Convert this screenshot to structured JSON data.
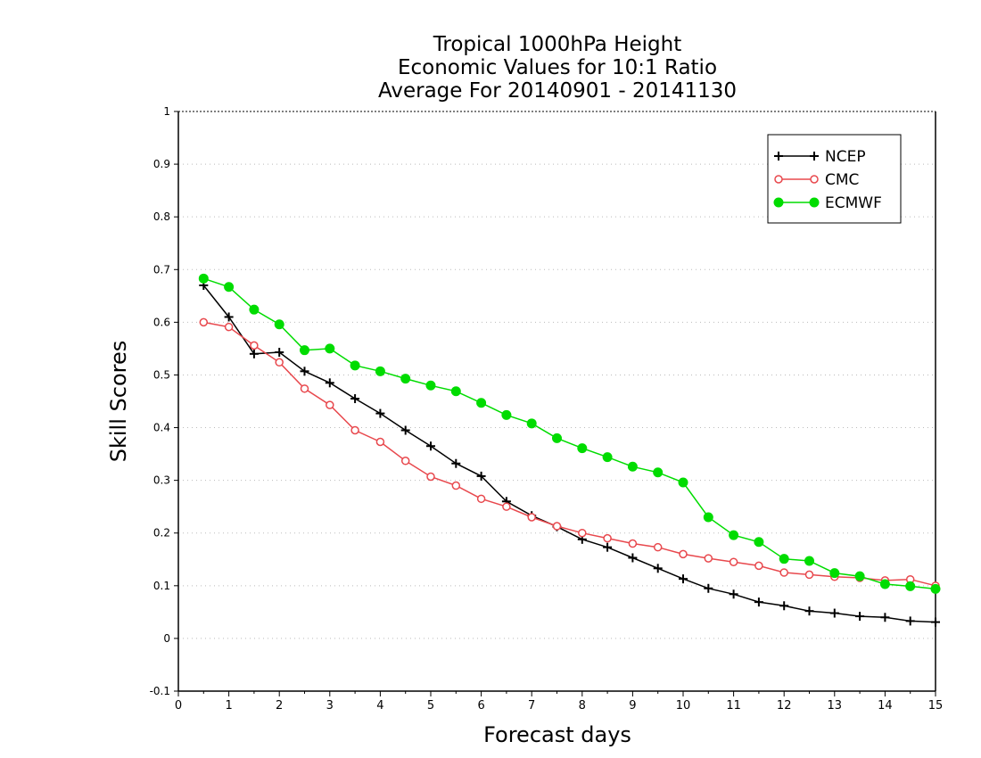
{
  "chart_data": {
    "type": "line",
    "title": [
      "Tropical 1000hPa Height",
      "Economic Values for 10:1 Ratio",
      "Average For 20140901 - 20141130"
    ],
    "xlabel": "Forecast days",
    "ylabel": "Skill Scores",
    "xlim": [
      0,
      15
    ],
    "ylim": [
      -0.1,
      1
    ],
    "xticks": [
      0,
      1,
      2,
      3,
      4,
      5,
      6,
      7,
      8,
      9,
      10,
      11,
      12,
      13,
      14,
      15
    ],
    "yticks": [
      -0.1,
      0,
      0.1,
      0.2,
      0.3,
      0.4,
      0.5,
      0.6,
      0.7,
      0.8,
      0.9,
      1
    ],
    "ytick_labels": [
      "-0.1",
      "0",
      "0.1",
      "0.2",
      "0.3",
      "0.4",
      "0.5",
      "0.6",
      "0.7",
      "0.8",
      "0.9",
      "1"
    ],
    "grid": "horizontal dotted",
    "legend_position": "top-right",
    "x": [
      0.5,
      1,
      1.5,
      2,
      2.5,
      3,
      3.5,
      4,
      4.5,
      5,
      5.5,
      6,
      6.5,
      7,
      7.5,
      8,
      8.5,
      9,
      9.5,
      10,
      10.5,
      11,
      11.5,
      12,
      12.5,
      13,
      13.5,
      14,
      14.5,
      15
    ],
    "series": [
      {
        "name": "NCEP",
        "color": "#000000",
        "marker": "plus",
        "values": [
          0.67,
          0.61,
          0.54,
          0.543,
          0.507,
          0.485,
          0.455,
          0.427,
          0.395,
          0.365,
          0.332,
          0.308,
          0.26,
          0.233,
          0.212,
          0.188,
          0.173,
          0.153,
          0.133,
          0.113,
          0.095,
          0.084,
          0.069,
          0.062,
          0.052,
          0.048,
          0.042,
          0.04,
          0.033,
          0.031
        ]
      },
      {
        "name": "CMC",
        "color": "#e8484d",
        "marker": "open-circle",
        "values": [
          0.6,
          0.591,
          0.556,
          0.524,
          0.474,
          0.443,
          0.395,
          0.373,
          0.337,
          0.307,
          0.29,
          0.265,
          0.25,
          0.23,
          0.213,
          0.2,
          0.19,
          0.18,
          0.173,
          0.16,
          0.152,
          0.145,
          0.138,
          0.125,
          0.121,
          0.117,
          0.115,
          0.11,
          0.112,
          0.1
        ]
      },
      {
        "name": "ECMWF",
        "color": "#00dc00",
        "marker": "filled-circle",
        "values": [
          0.683,
          0.667,
          0.624,
          0.596,
          0.547,
          0.55,
          0.518,
          0.507,
          0.493,
          0.48,
          0.469,
          0.447,
          0.424,
          0.408,
          0.38,
          0.361,
          0.344,
          0.326,
          0.315,
          0.296,
          0.23,
          0.196,
          0.183,
          0.151,
          0.147,
          0.124,
          0.118,
          0.103,
          0.099,
          0.094
        ]
      }
    ]
  }
}
